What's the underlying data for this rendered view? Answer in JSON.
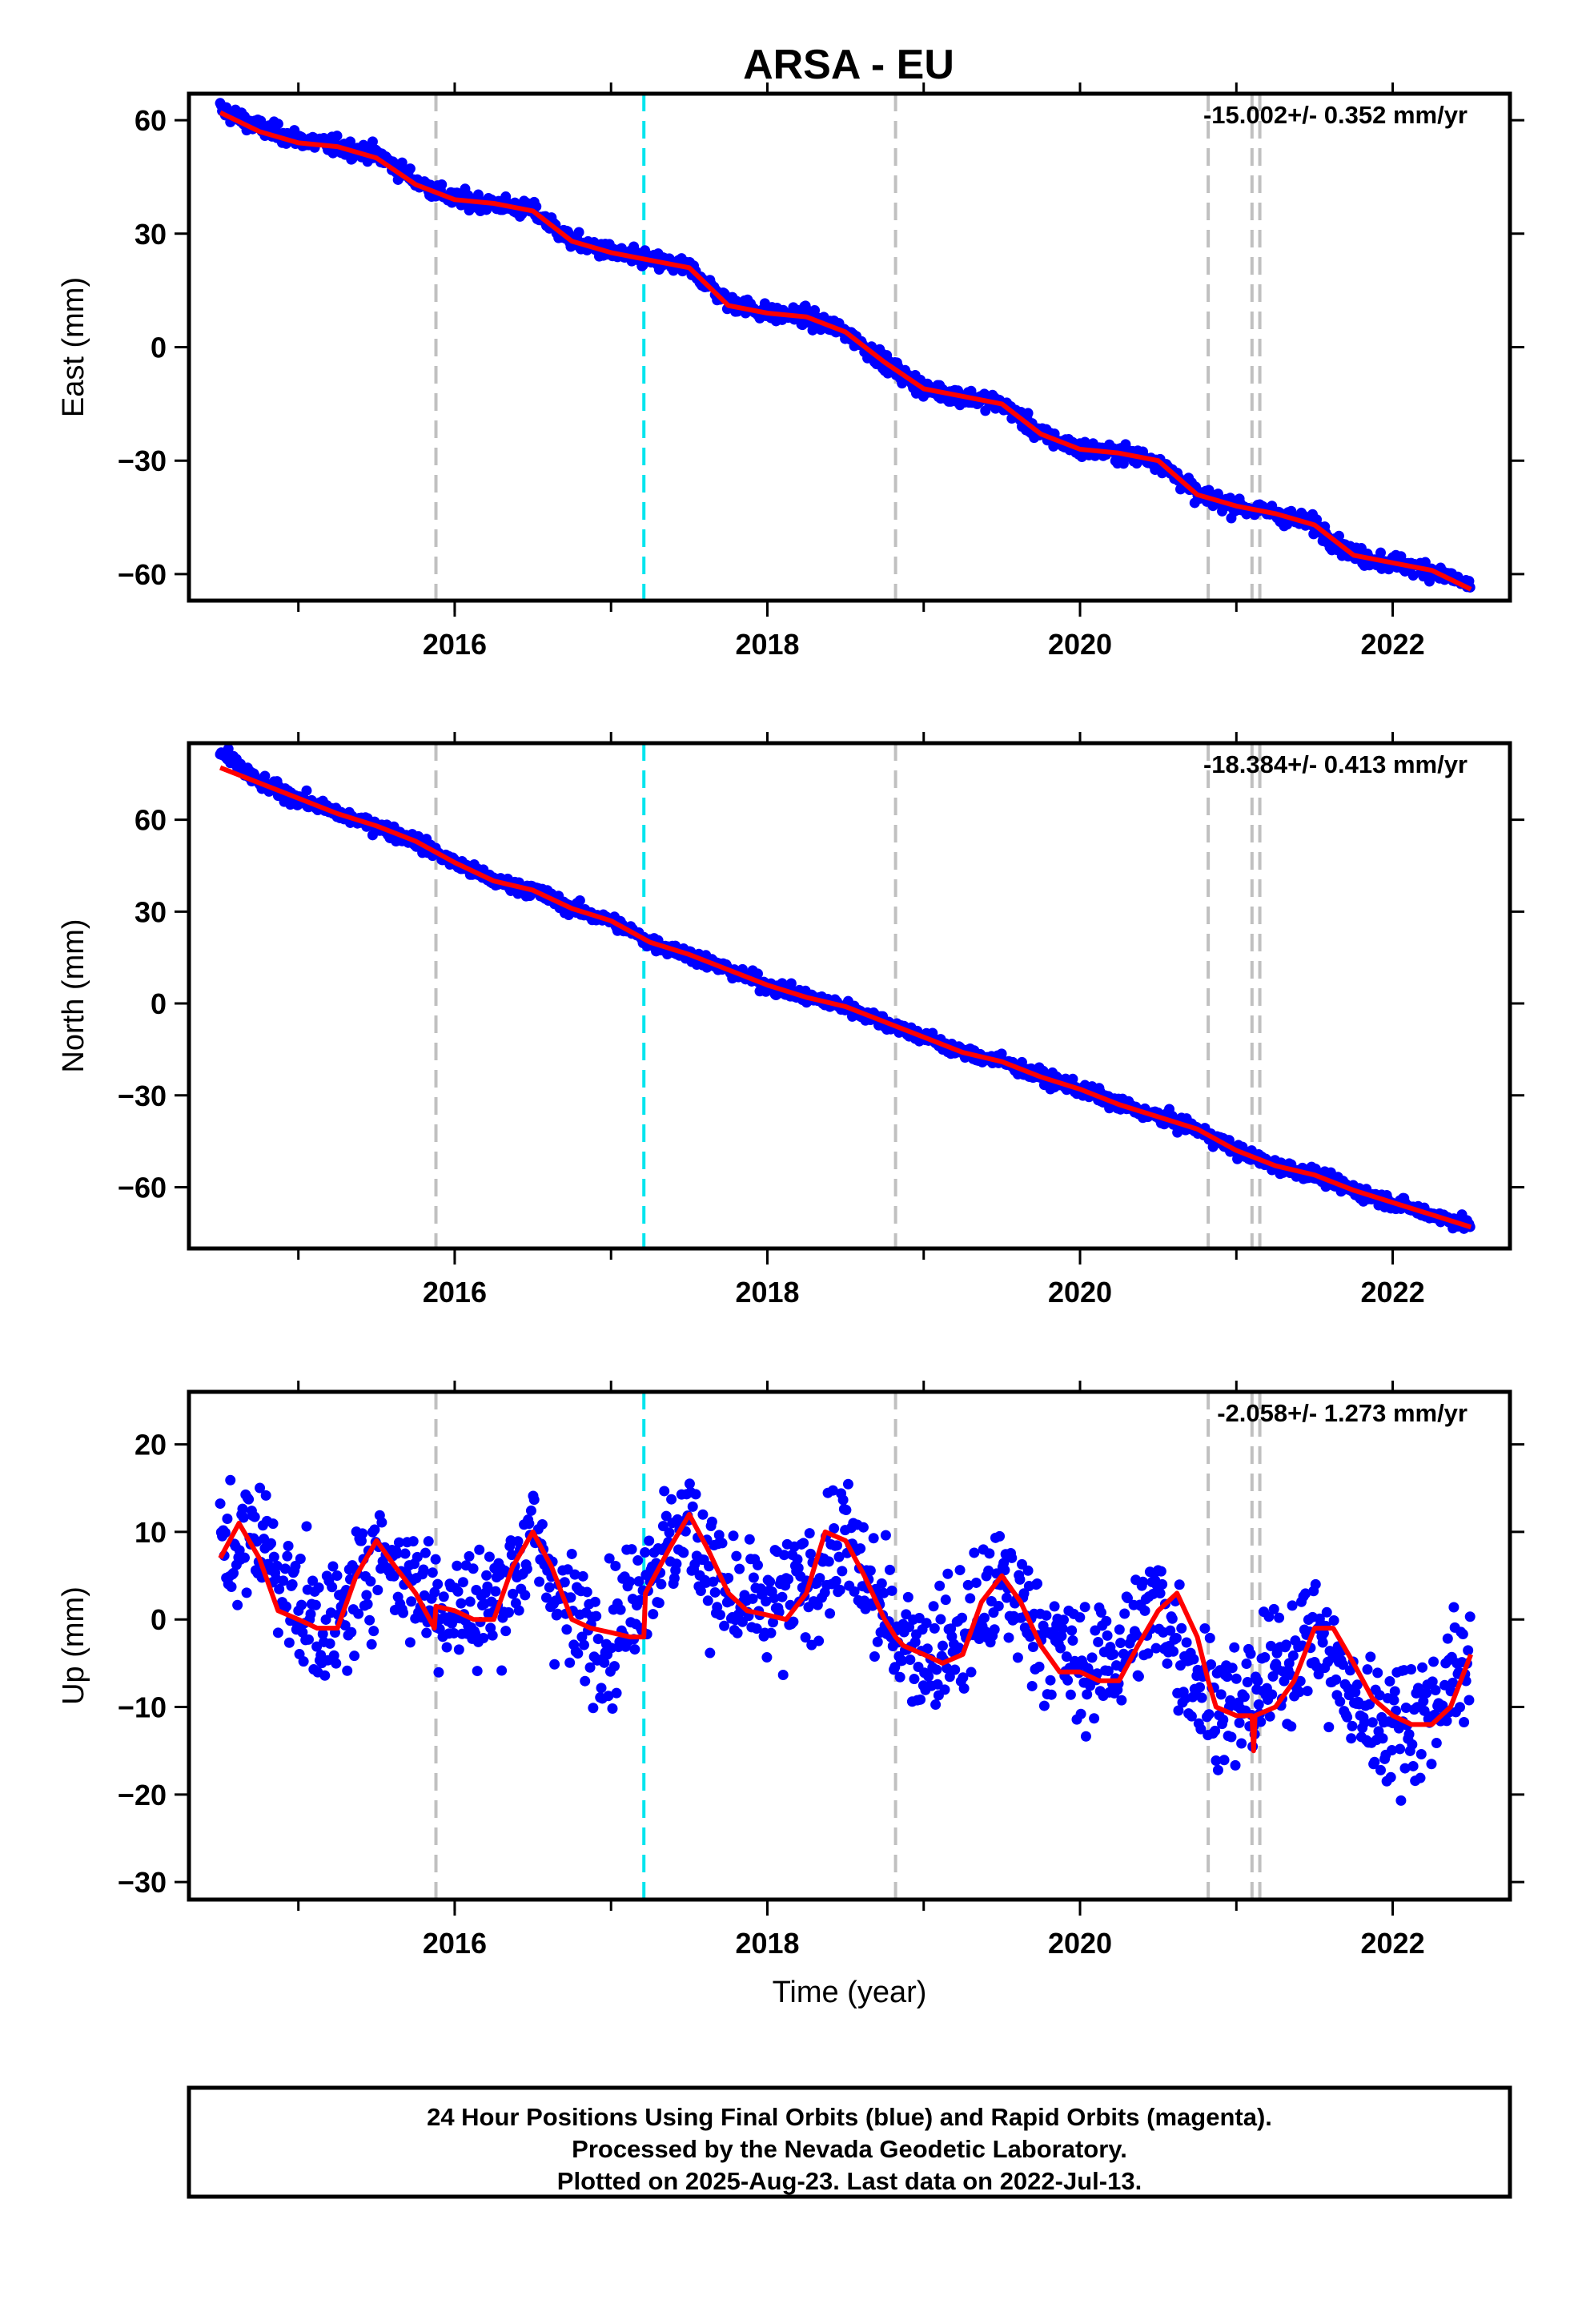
{
  "title": "ARSA - EU",
  "footer": {
    "line1": "24 Hour Positions Using Final Orbits (blue) and Rapid Orbits (magenta).",
    "line2": "Processed by the Nevada Geodetic Laboratory.",
    "line3": "Plotted on 2025-Aug-23. Last data on 2022-Jul-13."
  },
  "colors": {
    "daily": "#0000ff",
    "model": "#ff0000",
    "equipment_change": "#c0c0c0",
    "other_event": "#00e5ee"
  },
  "chart_data": [
    {
      "type": "scatter",
      "ylabel": "East (mm)",
      "rate_text": "-15.002+/- 0.352 mm/yr",
      "xlim": [
        2014.3,
        2022.75
      ],
      "ylim": [
        -67,
        67
      ],
      "x_ticks": [
        2016,
        2018,
        2020,
        2022
      ],
      "x_tick_labels": [
        "2016",
        "2018",
        "2020",
        "2022"
      ],
      "y_ticks": [
        60,
        30,
        0,
        -30,
        -60
      ],
      "y_tick_labels": [
        "60",
        "30",
        "0",
        "−30",
        "−60"
      ],
      "series": [
        {
          "role": "daily positions",
          "x": [
            2014.5,
            2014.75,
            2015.0,
            2015.25,
            2015.5,
            2015.75,
            2016.0,
            2016.25,
            2016.5,
            2016.75,
            2017.0,
            2017.25,
            2017.5,
            2017.75,
            2018.0,
            2018.25,
            2018.5,
            2018.75,
            2019.0,
            2019.25,
            2019.5,
            2019.75,
            2020.0,
            2020.25,
            2020.5,
            2020.75,
            2021.0,
            2021.25,
            2021.5,
            2021.75,
            2022.0,
            2022.25,
            2022.5
          ],
          "y": [
            63,
            58,
            55,
            53,
            51,
            44,
            39,
            38,
            36,
            28,
            25,
            23,
            21,
            12,
            9,
            8,
            4,
            -4,
            -11,
            -13,
            -15,
            -23,
            -27,
            -28,
            -30,
            -39,
            -42,
            -44,
            -47,
            -55,
            -57,
            -59,
            -63
          ]
        },
        {
          "role": "model fit",
          "x": [
            2014.5,
            2014.75,
            2015.0,
            2015.25,
            2015.5,
            2015.75,
            2016.0,
            2016.25,
            2016.5,
            2016.75,
            2017.0,
            2017.25,
            2017.5,
            2017.75,
            2018.0,
            2018.25,
            2018.5,
            2018.75,
            2019.0,
            2019.25,
            2019.5,
            2019.75,
            2020.0,
            2020.25,
            2020.5,
            2020.75,
            2021.0,
            2021.25,
            2021.5,
            2021.75,
            2022.0,
            2022.25,
            2022.5
          ],
          "y": [
            62,
            57,
            54,
            53,
            50,
            43,
            39,
            38,
            36,
            28,
            25,
            23,
            21,
            11,
            9,
            8,
            4,
            -4,
            -11,
            -13,
            -15,
            -23,
            -27,
            -28,
            -30,
            -39,
            -42,
            -44,
            -47,
            -55,
            -57,
            -59,
            -64
          ]
        }
      ]
    },
    {
      "type": "scatter",
      "ylabel": "North (mm)",
      "rate_text": "-18.384+/- 0.413 mm/yr",
      "xlim": [
        2014.3,
        2022.75
      ],
      "ylim": [
        -80,
        85
      ],
      "x_ticks": [
        2016,
        2018,
        2020,
        2022
      ],
      "x_tick_labels": [
        "2016",
        "2018",
        "2020",
        "2022"
      ],
      "y_ticks": [
        60,
        30,
        0,
        -30,
        -60
      ],
      "y_tick_labels": [
        "60",
        "30",
        "0",
        "−30",
        "−60"
      ],
      "series": [
        {
          "role": "daily positions",
          "x": [
            2014.5,
            2014.75,
            2015.0,
            2015.25,
            2015.5,
            2015.75,
            2016.0,
            2016.25,
            2016.5,
            2016.75,
            2017.0,
            2017.25,
            2017.5,
            2017.75,
            2018.0,
            2018.25,
            2018.5,
            2018.75,
            2019.0,
            2019.25,
            2019.5,
            2019.75,
            2020.0,
            2020.25,
            2020.5,
            2020.75,
            2021.0,
            2021.25,
            2021.5,
            2021.75,
            2022.0,
            2022.25,
            2022.5
          ],
          "y": [
            82,
            72,
            67,
            62,
            58,
            53,
            46,
            40,
            37,
            31,
            27,
            20,
            16,
            11,
            6,
            2,
            -1,
            -6,
            -11,
            -16,
            -19,
            -24,
            -28,
            -33,
            -37,
            -41,
            -48,
            -53,
            -56,
            -61,
            -65,
            -69,
            -72
          ]
        },
        {
          "role": "model fit",
          "x": [
            2014.5,
            2014.75,
            2015.0,
            2015.25,
            2015.5,
            2015.75,
            2016.0,
            2016.25,
            2016.5,
            2016.75,
            2017.0,
            2017.25,
            2017.5,
            2017.75,
            2018.0,
            2018.25,
            2018.5,
            2018.75,
            2019.0,
            2019.25,
            2019.5,
            2019.75,
            2020.0,
            2020.25,
            2020.5,
            2020.75,
            2021.0,
            2021.25,
            2021.5,
            2021.75,
            2022.0,
            2022.25,
            2022.5
          ],
          "y": [
            77,
            72,
            67,
            62,
            58,
            53,
            46,
            40,
            37,
            31,
            27,
            20,
            16,
            11,
            6,
            2,
            -1,
            -6,
            -11,
            -16,
            -19,
            -24,
            -28,
            -33,
            -37,
            -41,
            -48,
            -53,
            -56,
            -61,
            -65,
            -69,
            -73
          ]
        }
      ]
    },
    {
      "type": "scatter",
      "ylabel": "Up (mm)",
      "rate_text": "-2.058+/- 1.273 mm/yr",
      "xlim": [
        2014.3,
        2022.75
      ],
      "ylim": [
        -32,
        26
      ],
      "x_ticks": [
        2016,
        2018,
        2020,
        2022
      ],
      "x_tick_labels": [
        "2016",
        "2018",
        "2020",
        "2022"
      ],
      "y_ticks": [
        20,
        10,
        0,
        -10,
        -20,
        -30
      ],
      "y_tick_labels": [
        "20",
        "10",
        "0",
        "−10",
        "−20",
        "−30"
      ],
      "xlabel": "Time (year)",
      "series": [
        {
          "role": "daily positions",
          "x": [
            2014.5,
            2014.75,
            2015.0,
            2015.25,
            2015.5,
            2015.75,
            2016.0,
            2016.25,
            2016.5,
            2016.75,
            2017.0,
            2017.25,
            2017.5,
            2017.75,
            2018.0,
            2018.25,
            2018.5,
            2018.75,
            2019.0,
            2019.25,
            2019.5,
            2019.75,
            2020.0,
            2020.25,
            2020.5,
            2020.75,
            2021.0,
            2021.25,
            2021.5,
            2021.75,
            2022.0,
            2022.25,
            2022.5
          ],
          "y": [
            7,
            10,
            1,
            -1,
            8,
            4,
            1,
            2,
            9,
            0,
            -2,
            6,
            11,
            2,
            1,
            4,
            9,
            0,
            -4,
            -2,
            4,
            -1,
            -6,
            -4,
            2,
            -7,
            -11,
            -6,
            -1,
            -10,
            -12,
            -10,
            -4
          ]
        },
        {
          "role": "model fit",
          "x": [
            2014.5,
            2014.62,
            2014.75,
            2014.87,
            2015.0,
            2015.12,
            2015.25,
            2015.37,
            2015.5,
            2015.62,
            2015.75,
            2015.87,
            2015.88,
            2016.0,
            2016.12,
            2016.25,
            2016.37,
            2016.5,
            2016.62,
            2016.75,
            2016.87,
            2017.0,
            2017.12,
            2017.21,
            2017.22,
            2017.37,
            2017.5,
            2017.62,
            2017.75,
            2017.87,
            2018.0,
            2018.12,
            2018.25,
            2018.37,
            2018.5,
            2018.62,
            2018.75,
            2018.82,
            2018.87,
            2019.0,
            2019.12,
            2019.25,
            2019.37,
            2019.5,
            2019.62,
            2019.75,
            2019.87,
            2020.0,
            2020.12,
            2020.25,
            2020.37,
            2020.5,
            2020.62,
            2020.75,
            2020.82,
            2020.87,
            2021.0,
            2021.1,
            2021.11,
            2021.12,
            2021.25,
            2021.37,
            2021.5,
            2021.62,
            2021.75,
            2021.87,
            2022.0,
            2022.12,
            2022.25,
            2022.37,
            2022.5
          ],
          "y": [
            7,
            11,
            7,
            1,
            0,
            -1,
            -1,
            5,
            9,
            6,
            3,
            -1,
            1.5,
            1,
            0,
            0,
            6,
            10,
            6,
            0,
            -1,
            -1.5,
            -2,
            -2,
            3,
            8,
            12,
            8,
            3,
            1,
            0.5,
            0,
            3,
            10,
            9,
            5,
            0,
            -2,
            -3,
            -4,
            -5,
            -4,
            2,
            5,
            2,
            -3,
            -6,
            -6,
            -7,
            -7,
            -3,
            1,
            3,
            -2,
            -7,
            -10,
            -11,
            -11,
            -15,
            -11,
            -10,
            -7,
            -1,
            -1,
            -5,
            -9,
            -11,
            -12,
            -12,
            -10,
            -4
          ]
        }
      ]
    }
  ],
  "event_lines": {
    "equipment_change_years": [
      2015.88,
      2018.82,
      2020.82,
      2021.1,
      2021.15
    ],
    "other_event_years": [
      2017.21
    ]
  }
}
